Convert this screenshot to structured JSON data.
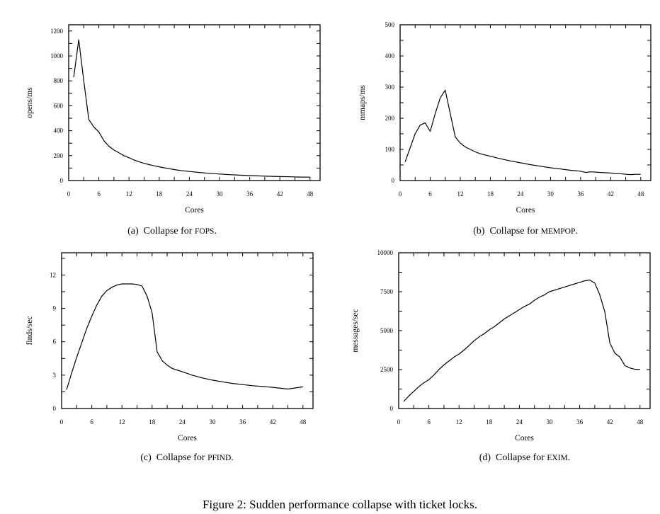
{
  "figure_caption": "Figure 2: Sudden performance collapse with ticket locks.",
  "chart_data": [
    {
      "type": "line",
      "caption": {
        "label": "(a)",
        "text": "Collapse for",
        "name": "FOPS",
        "end": "."
      },
      "xlabel": "Cores",
      "ylabel": "opens/ms",
      "xlim": [
        0,
        50
      ],
      "ylim": [
        0,
        1250
      ],
      "xticks": [
        0,
        6,
        12,
        18,
        24,
        30,
        36,
        42,
        48
      ],
      "yticks": [
        0,
        200,
        400,
        600,
        800,
        1000,
        1200
      ],
      "grid": false,
      "x": [
        1,
        2,
        3,
        4,
        5,
        6,
        7,
        8,
        9,
        10,
        11,
        12,
        13,
        14,
        15,
        16,
        17,
        18,
        19,
        20,
        21,
        22,
        24,
        26,
        28,
        30,
        32,
        34,
        36,
        38,
        40,
        42,
        44,
        46,
        48
      ],
      "values": [
        830,
        1130,
        800,
        490,
        430,
        390,
        320,
        275,
        245,
        222,
        200,
        183,
        165,
        150,
        138,
        128,
        118,
        110,
        102,
        95,
        88,
        82,
        73,
        65,
        58,
        52,
        47,
        43,
        40,
        37,
        34,
        32,
        30,
        28,
        27
      ]
    },
    {
      "type": "line",
      "caption": {
        "label": "(b)",
        "text": "Collapse for",
        "name": "MEMPOP",
        "end": "."
      },
      "xlabel": "Cores",
      "ylabel": "mmaps/ms",
      "xlim": [
        0,
        50
      ],
      "ylim": [
        0,
        500
      ],
      "xticks": [
        0,
        6,
        12,
        18,
        24,
        30,
        36,
        42,
        48
      ],
      "yticks": [
        0,
        100,
        200,
        300,
        400,
        500
      ],
      "grid": false,
      "x": [
        1,
        2,
        3,
        4,
        5,
        6,
        7,
        8,
        9,
        10,
        11,
        12,
        13,
        14,
        15,
        16,
        18,
        20,
        22,
        24,
        26,
        28,
        30,
        32,
        34,
        36,
        37,
        38,
        40,
        42,
        43,
        44,
        45,
        46,
        47,
        48
      ],
      "values": [
        60,
        105,
        150,
        178,
        185,
        158,
        215,
        265,
        290,
        215,
        140,
        120,
        108,
        100,
        92,
        86,
        78,
        70,
        63,
        57,
        51,
        46,
        41,
        37,
        33,
        30,
        26,
        28,
        26,
        24,
        22,
        22,
        20,
        19,
        20,
        20
      ]
    },
    {
      "type": "line",
      "caption": {
        "label": "(c)",
        "text": "Collapse for",
        "name": "PFIND",
        "end": "."
      },
      "xlabel": "Cores",
      "ylabel": "finds/sec",
      "xlim": [
        0,
        50
      ],
      "ylim": [
        0,
        14
      ],
      "xticks": [
        0,
        6,
        12,
        18,
        24,
        30,
        36,
        42,
        48
      ],
      "yticks": [
        0,
        3,
        6,
        9,
        12
      ],
      "grid": false,
      "x": [
        1,
        2,
        3,
        4,
        5,
        6,
        7,
        8,
        9,
        10,
        11,
        12,
        13,
        14,
        15,
        16,
        17,
        18,
        19,
        20,
        21,
        22,
        24,
        26,
        28,
        30,
        32,
        34,
        36,
        38,
        40,
        42,
        45,
        48
      ],
      "values": [
        1.7,
        3.2,
        4.6,
        5.9,
        7.2,
        8.3,
        9.3,
        10.1,
        10.6,
        10.9,
        11.1,
        11.2,
        11.2,
        11.2,
        11.15,
        11.0,
        10.1,
        8.6,
        5.1,
        4.3,
        3.9,
        3.6,
        3.3,
        3.0,
        2.75,
        2.55,
        2.4,
        2.25,
        2.15,
        2.05,
        1.98,
        1.9,
        1.75,
        1.95
      ]
    },
    {
      "type": "line",
      "caption": {
        "label": "(d)",
        "text": "Collapse for",
        "name": "EXIM",
        "end": "."
      },
      "xlabel": "Cores",
      "ylabel": "messages/sec",
      "xlim": [
        0,
        50
      ],
      "ylim": [
        0,
        10000
      ],
      "xticks": [
        0,
        6,
        12,
        18,
        24,
        30,
        36,
        42,
        48
      ],
      "yticks": [
        0,
        2500,
        5000,
        7500,
        10000
      ],
      "grid": false,
      "x": [
        1,
        2,
        3,
        4,
        5,
        6,
        7,
        8,
        9,
        10,
        11,
        12,
        13,
        14,
        15,
        16,
        17,
        18,
        19,
        20,
        21,
        22,
        23,
        24,
        25,
        26,
        27,
        28,
        29,
        30,
        31,
        32,
        33,
        34,
        35,
        36,
        37,
        38,
        39,
        40,
        41,
        42,
        43,
        44,
        45,
        46,
        47,
        48
      ],
      "values": [
        450,
        800,
        1100,
        1400,
        1650,
        1850,
        2150,
        2500,
        2800,
        3050,
        3300,
        3500,
        3750,
        4050,
        4350,
        4600,
        4800,
        5050,
        5250,
        5500,
        5750,
        5950,
        6150,
        6350,
        6550,
        6700,
        6950,
        7150,
        7300,
        7500,
        7600,
        7700,
        7800,
        7900,
        8000,
        8100,
        8200,
        8250,
        8050,
        7300,
        6200,
        4200,
        3550,
        3300,
        2750,
        2600,
        2520,
        2520
      ]
    }
  ]
}
